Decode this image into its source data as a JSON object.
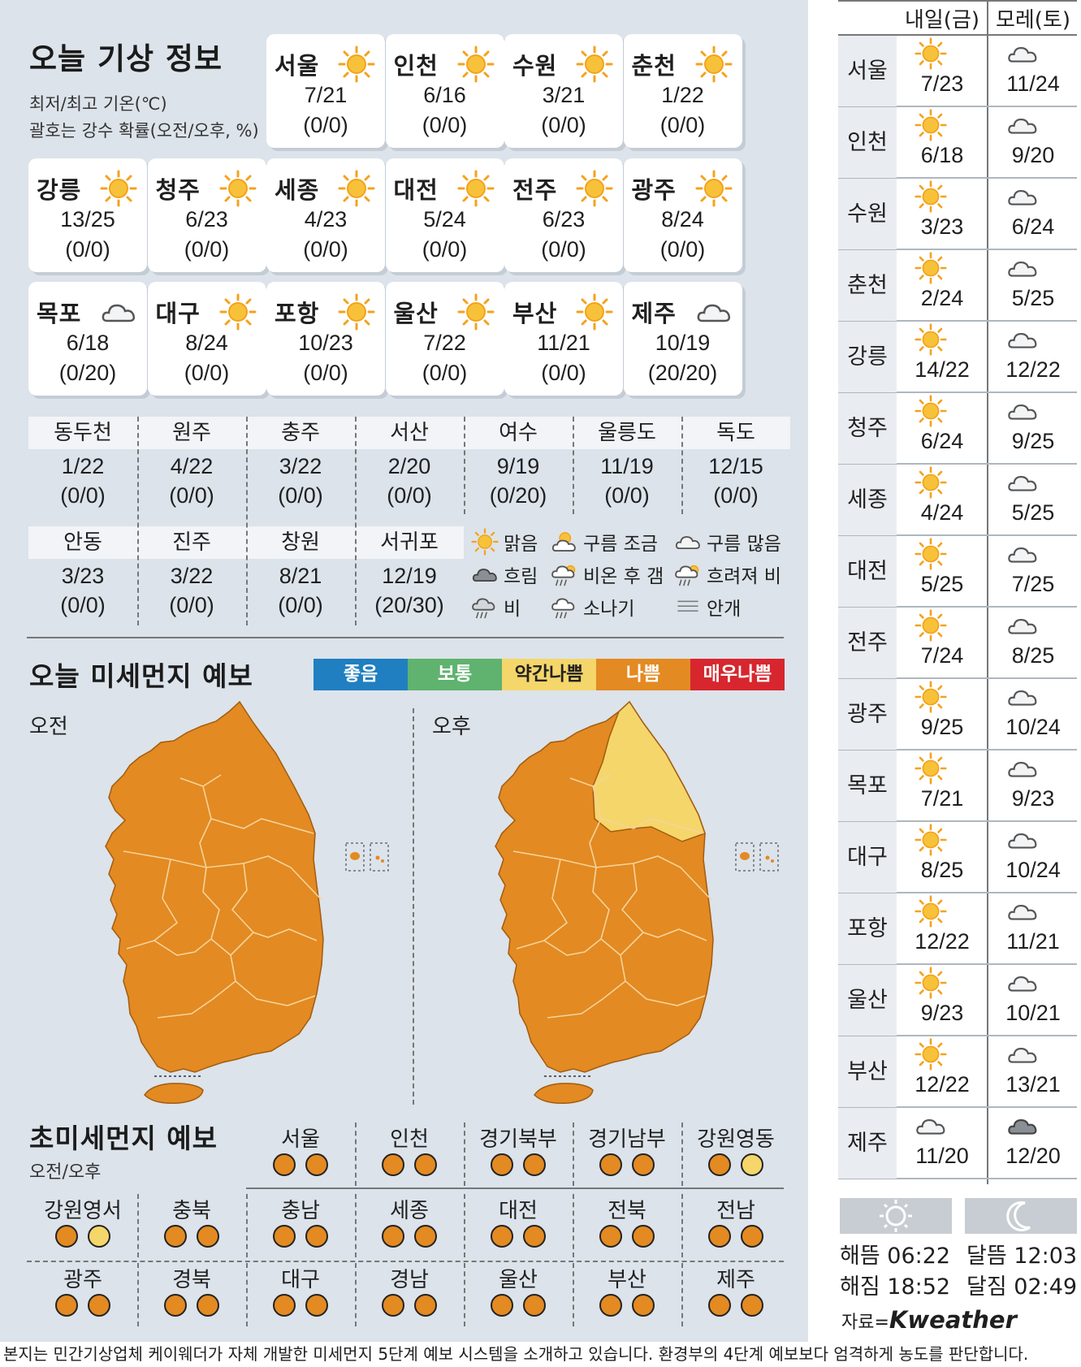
{
  "title": "오늘 기상 정보",
  "sub1": "최저/최고 기온(℃)",
  "sub2": "괄호는 강수 확률(오전/오후, %)",
  "cities": [
    {
      "name": "서울",
      "temp": "7/21",
      "rain": "(0/0)",
      "icon": "sun-icon"
    },
    {
      "name": "인천",
      "temp": "6/16",
      "rain": "(0/0)",
      "icon": "sun-icon"
    },
    {
      "name": "수원",
      "temp": "3/21",
      "rain": "(0/0)",
      "icon": "sun-icon"
    },
    {
      "name": "춘천",
      "temp": "1/22",
      "rain": "(0/0)",
      "icon": "sun-icon"
    },
    {
      "name": "강릉",
      "temp": "13/25",
      "rain": "(0/0)",
      "icon": "sun-icon"
    },
    {
      "name": "청주",
      "temp": "6/23",
      "rain": "(0/0)",
      "icon": "sun-icon"
    },
    {
      "name": "세종",
      "temp": "4/23",
      "rain": "(0/0)",
      "icon": "sun-icon"
    },
    {
      "name": "대전",
      "temp": "5/24",
      "rain": "(0/0)",
      "icon": "sun-icon"
    },
    {
      "name": "전주",
      "temp": "6/23",
      "rain": "(0/0)",
      "icon": "sun-icon"
    },
    {
      "name": "광주",
      "temp": "8/24",
      "rain": "(0/0)",
      "icon": "sun-icon"
    },
    {
      "name": "목포",
      "temp": "6/18",
      "rain": "(0/20)",
      "icon": "cloud-icon"
    },
    {
      "name": "대구",
      "temp": "8/24",
      "rain": "(0/0)",
      "icon": "sun-icon"
    },
    {
      "name": "포항",
      "temp": "10/23",
      "rain": "(0/0)",
      "icon": "sun-icon"
    },
    {
      "name": "울산",
      "temp": "7/22",
      "rain": "(0/0)",
      "icon": "sun-icon"
    },
    {
      "name": "부산",
      "temp": "11/21",
      "rain": "(0/0)",
      "icon": "sun-icon"
    },
    {
      "name": "제주",
      "temp": "10/19",
      "rain": "(20/20)",
      "icon": "cloud-icon"
    }
  ],
  "small": [
    {
      "name": "동두천",
      "temp": "1/22",
      "rain": "(0/0)"
    },
    {
      "name": "원주",
      "temp": "4/22",
      "rain": "(0/0)"
    },
    {
      "name": "충주",
      "temp": "3/22",
      "rain": "(0/0)"
    },
    {
      "name": "서산",
      "temp": "2/20",
      "rain": "(0/0)"
    },
    {
      "name": "여수",
      "temp": "9/19",
      "rain": "(0/20)"
    },
    {
      "name": "울릉도",
      "temp": "11/19",
      "rain": "(0/0)"
    },
    {
      "name": "독도",
      "temp": "12/15",
      "rain": "(0/0)"
    },
    {
      "name": "안동",
      "temp": "3/23",
      "rain": "(0/0)"
    },
    {
      "name": "진주",
      "temp": "3/22",
      "rain": "(0/0)"
    },
    {
      "name": "창원",
      "temp": "8/21",
      "rain": "(0/0)"
    },
    {
      "name": "서귀포",
      "temp": "12/19",
      "rain": "(20/30)"
    }
  ],
  "legend": [
    {
      "label": "맑음",
      "icon": "sun-icon"
    },
    {
      "label": "구름 조금",
      "icon": "partly-cloudy-icon"
    },
    {
      "label": "구름 많음",
      "icon": "cloud-icon"
    },
    {
      "label": "흐림",
      "icon": "dark-cloud-icon"
    },
    {
      "label": "비온 후 갬",
      "icon": "rain-then-clear-icon"
    },
    {
      "label": "흐려져 비",
      "icon": "cloudy-then-rain-icon"
    },
    {
      "label": "비",
      "icon": "rain-icon"
    },
    {
      "label": "소나기",
      "icon": "shower-icon"
    },
    {
      "label": "안개",
      "icon": "fog-icon"
    }
  ],
  "dust": {
    "title": "오늘 미세먼지 예보",
    "levels": [
      {
        "label": "좋음",
        "color": "#1f7fc1"
      },
      {
        "label": "보통",
        "color": "#5fb36e"
      },
      {
        "label": "약간나쁨",
        "color": "#f5d66a"
      },
      {
        "label": "나쁨",
        "color": "#e38a22"
      },
      {
        "label": "매우나쁨",
        "color": "#d7262e"
      }
    ],
    "am": "오전",
    "pm": "오후"
  },
  "pm25": {
    "title": "초미세먼지 예보",
    "sub": "오전/오후",
    "regions": [
      {
        "name": "서울",
        "am": "나쁨",
        "pm": "나쁨"
      },
      {
        "name": "인천",
        "am": "나쁨",
        "pm": "나쁨"
      },
      {
        "name": "경기북부",
        "am": "나쁨",
        "pm": "나쁨"
      },
      {
        "name": "경기남부",
        "am": "나쁨",
        "pm": "나쁨"
      },
      {
        "name": "강원영동",
        "am": "나쁨",
        "pm": "약간나쁨"
      },
      {
        "name": "강원영서",
        "am": "나쁨",
        "pm": "약간나쁨"
      },
      {
        "name": "충북",
        "am": "나쁨",
        "pm": "나쁨"
      },
      {
        "name": "충남",
        "am": "나쁨",
        "pm": "나쁨"
      },
      {
        "name": "세종",
        "am": "나쁨",
        "pm": "나쁨"
      },
      {
        "name": "대전",
        "am": "나쁨",
        "pm": "나쁨"
      },
      {
        "name": "전북",
        "am": "나쁨",
        "pm": "나쁨"
      },
      {
        "name": "전남",
        "am": "나쁨",
        "pm": "나쁨"
      },
      {
        "name": "광주",
        "am": "나쁨",
        "pm": "나쁨"
      },
      {
        "name": "경북",
        "am": "나쁨",
        "pm": "나쁨"
      },
      {
        "name": "대구",
        "am": "나쁨",
        "pm": "나쁨"
      },
      {
        "name": "경남",
        "am": "나쁨",
        "pm": "나쁨"
      },
      {
        "name": "울산",
        "am": "나쁨",
        "pm": "나쁨"
      },
      {
        "name": "부산",
        "am": "나쁨",
        "pm": "나쁨"
      },
      {
        "name": "제주",
        "am": "나쁨",
        "pm": "나쁨"
      }
    ]
  },
  "forecast": {
    "day1": "내일(금)",
    "day2": "모레(토)",
    "rows": [
      {
        "city": "서울",
        "d1": "7/23",
        "d1icon": "sun-icon",
        "d2": "11/24",
        "d2icon": "cloud-icon"
      },
      {
        "city": "인천",
        "d1": "6/18",
        "d1icon": "sun-icon",
        "d2": "9/20",
        "d2icon": "cloud-icon"
      },
      {
        "city": "수원",
        "d1": "3/23",
        "d1icon": "sun-icon",
        "d2": "6/24",
        "d2icon": "cloud-icon"
      },
      {
        "city": "춘천",
        "d1": "2/24",
        "d1icon": "sun-icon",
        "d2": "5/25",
        "d2icon": "cloud-icon"
      },
      {
        "city": "강릉",
        "d1": "14/22",
        "d1icon": "sun-icon",
        "d2": "12/22",
        "d2icon": "cloud-icon"
      },
      {
        "city": "청주",
        "d1": "6/24",
        "d1icon": "sun-icon",
        "d2": "9/25",
        "d2icon": "cloud-icon"
      },
      {
        "city": "세종",
        "d1": "4/24",
        "d1icon": "sun-icon",
        "d2": "5/25",
        "d2icon": "cloud-icon"
      },
      {
        "city": "대전",
        "d1": "5/25",
        "d1icon": "sun-icon",
        "d2": "7/25",
        "d2icon": "cloud-icon"
      },
      {
        "city": "전주",
        "d1": "7/24",
        "d1icon": "sun-icon",
        "d2": "8/25",
        "d2icon": "cloud-icon"
      },
      {
        "city": "광주",
        "d1": "9/25",
        "d1icon": "sun-icon",
        "d2": "10/24",
        "d2icon": "cloud-icon"
      },
      {
        "city": "목포",
        "d1": "7/21",
        "d1icon": "sun-icon",
        "d2": "9/23",
        "d2icon": "cloud-icon"
      },
      {
        "city": "대구",
        "d1": "8/25",
        "d1icon": "sun-icon",
        "d2": "10/24",
        "d2icon": "cloud-icon"
      },
      {
        "city": "포항",
        "d1": "12/22",
        "d1icon": "sun-icon",
        "d2": "11/21",
        "d2icon": "cloud-icon"
      },
      {
        "city": "울산",
        "d1": "9/23",
        "d1icon": "sun-icon",
        "d2": "10/21",
        "d2icon": "cloud-icon"
      },
      {
        "city": "부산",
        "d1": "12/22",
        "d1icon": "sun-icon",
        "d2": "13/21",
        "d2icon": "cloud-icon"
      },
      {
        "city": "제주",
        "d1": "11/20",
        "d1icon": "cloud-icon",
        "d2": "12/20",
        "d2icon": "dark-cloud-icon"
      }
    ]
  },
  "sun": {
    "rise": "해뜸 06:22",
    "set": "해짐 18:52"
  },
  "moon": {
    "rise": "달뜸 12:03",
    "set": "달짐 02:49"
  },
  "source": {
    "prefix": "자료=",
    "brand": "Kweather"
  },
  "footer": "본지는 민간기상업체 케이웨더가 자체 개발한 미세먼지 5단계 예보 시스템을 소개하고 있습니다. 환경부의 4단계 예보보다 엄격하게 농도를 판단합니다.",
  "colors": {
    "bad": "#e38a22",
    "slightly_bad": "#f5d66a",
    "sun": "#f4a21c",
    "cloud": "#b9c0c8"
  }
}
